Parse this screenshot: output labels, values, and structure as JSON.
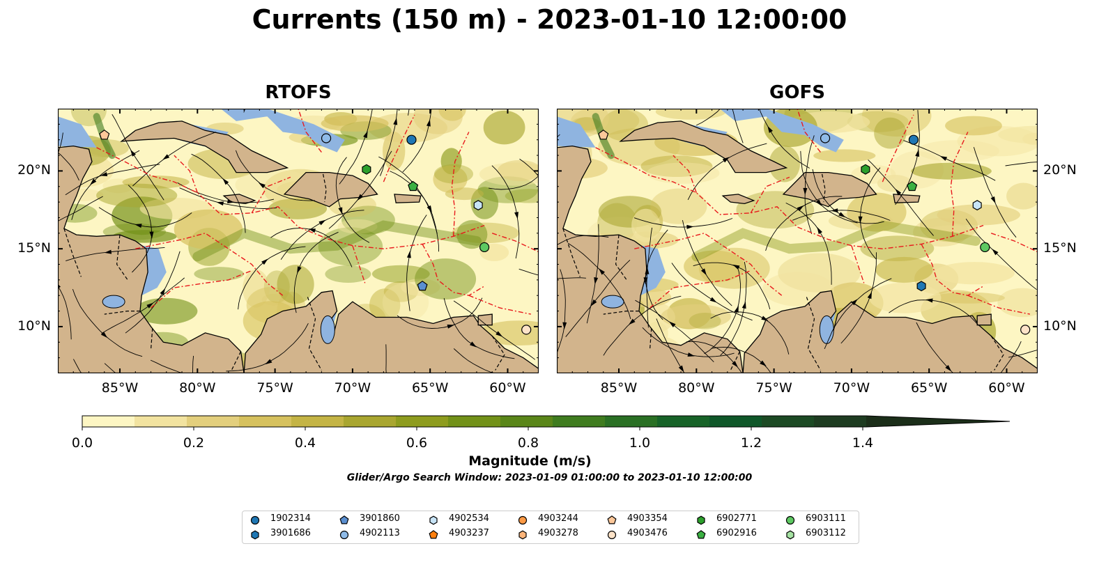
{
  "title": "Currents (150 m) - 2023-01-10 12:00:00",
  "panels": [
    {
      "title": "RTOFS"
    },
    {
      "title": "GOFS"
    }
  ],
  "axes": {
    "lon_ticks": [
      "85°W",
      "80°W",
      "75°W",
      "70°W",
      "65°W",
      "60°W"
    ],
    "lat_ticks": [
      "20°N",
      "15°N",
      "10°N"
    ],
    "lon_values": [
      -85,
      -80,
      -75,
      -70,
      -65,
      -60
    ],
    "lat_values": [
      20,
      15,
      10
    ],
    "lon_range": [
      -89,
      -58
    ],
    "lat_range": [
      7,
      24
    ]
  },
  "colorbar": {
    "label": "Magnitude (m/s)",
    "ticks": [
      "0.0",
      "0.2",
      "0.4",
      "0.6",
      "0.8",
      "1.0",
      "1.2",
      "1.4"
    ],
    "tick_values": [
      0.0,
      0.2,
      0.4,
      0.6,
      0.8,
      1.0,
      1.2,
      1.4
    ],
    "range": [
      0.0,
      1.5
    ],
    "extend": "max",
    "colors": [
      "#fdf6c3",
      "#f2e3a0",
      "#e3cf7d",
      "#d6c15e",
      "#c4b445",
      "#a9a630",
      "#8e9c1e",
      "#729118",
      "#5a8619",
      "#3f7c1f",
      "#2a7024",
      "#176328",
      "#0f5729",
      "#1c4a24",
      "#1e3c21",
      "#1b2e19"
    ]
  },
  "search_window": "Glider/Argo Search Window: 2023-01-09 01:00:00 to 2023-01-10 12:00:00",
  "legend": {
    "items": [
      {
        "id": "1902314",
        "marker": "circle",
        "color": "#1f77b4"
      },
      {
        "id": "3901686",
        "marker": "hexagon",
        "color": "#1f77b4"
      },
      {
        "id": "3901860",
        "marker": "pentagon",
        "color": "#5a8fd0"
      },
      {
        "id": "4902113",
        "marker": "circle",
        "color": "#8fbbe8"
      },
      {
        "id": "4902534",
        "marker": "hexagon",
        "color": "#c7e4f7"
      },
      {
        "id": "4903237",
        "marker": "pentagon",
        "color": "#ff7f0e"
      },
      {
        "id": "4903244",
        "marker": "circle",
        "color": "#fd9a45"
      },
      {
        "id": "4903278",
        "marker": "hexagon",
        "color": "#fdb57a"
      },
      {
        "id": "4903354",
        "marker": "pentagon",
        "color": "#fdc89a"
      },
      {
        "id": "4903476",
        "marker": "circle",
        "color": "#fde3c8"
      },
      {
        "id": "6902771",
        "marker": "hexagon",
        "color": "#2ca02c"
      },
      {
        "id": "6902916",
        "marker": "pentagon",
        "color": "#3bb043"
      },
      {
        "id": "6903111",
        "marker": "circle",
        "color": "#5ec962"
      },
      {
        "id": "6903112",
        "marker": "hexagon",
        "color": "#a6e2a3"
      }
    ]
  },
  "map_data": {
    "colors": {
      "land": "#d2b48c",
      "shallow_water": "#8fb4e0",
      "eez_line": "#e8191c",
      "streamline": "#000000"
    },
    "panels": {
      "RTOFS": {
        "floats": [
          {
            "id": "4903354",
            "lon": -86.0,
            "lat": 22.3
          },
          {
            "id": "4902113",
            "lon": -71.7,
            "lat": 22.1
          },
          {
            "id": "1902314",
            "lon": -66.2,
            "lat": 22.0
          },
          {
            "id": "6902771",
            "lon": -69.1,
            "lat": 20.1
          },
          {
            "id": "6902916",
            "lon": -66.1,
            "lat": 19.0
          },
          {
            "id": "4902534",
            "lon": -61.9,
            "lat": 17.8
          },
          {
            "id": "6903111",
            "lon": -61.5,
            "lat": 15.1
          },
          {
            "id": "3901860",
            "lon": -65.5,
            "lat": 12.6
          },
          {
            "id": "4903476",
            "lon": -58.8,
            "lat": 9.8
          }
        ]
      },
      "GOFS": {
        "floats": [
          {
            "id": "4903354",
            "lon": -86.0,
            "lat": 22.3
          },
          {
            "id": "4902113",
            "lon": -71.7,
            "lat": 22.1
          },
          {
            "id": "1902314",
            "lon": -66.0,
            "lat": 22.0
          },
          {
            "id": "6902771",
            "lon": -69.1,
            "lat": 20.1
          },
          {
            "id": "6902916",
            "lon": -66.1,
            "lat": 19.0
          },
          {
            "id": "4902534",
            "lon": -61.9,
            "lat": 17.8
          },
          {
            "id": "6903111",
            "lon": -61.4,
            "lat": 15.1
          },
          {
            "id": "3901686",
            "lon": -65.5,
            "lat": 12.6
          },
          {
            "id": "4903476",
            "lon": -58.8,
            "lat": 9.8
          }
        ]
      }
    }
  }
}
